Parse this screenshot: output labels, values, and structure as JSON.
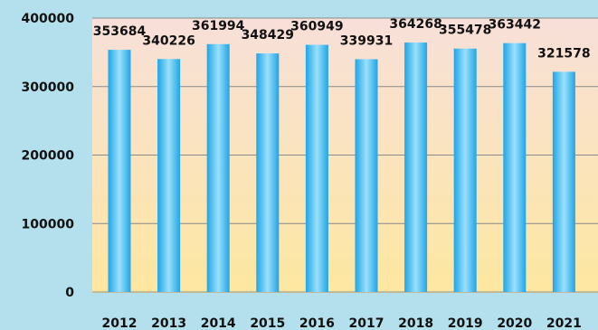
{
  "chart_data": {
    "type": "bar",
    "categories": [
      "2012",
      "2013",
      "2014",
      "2015",
      "2016",
      "2017",
      "2018",
      "2019",
      "2020",
      "2021"
    ],
    "values": [
      353684,
      340226,
      361994,
      348429,
      360949,
      339931,
      364268,
      355478,
      363442,
      321578
    ],
    "data_labels": [
      "353684",
      "340226",
      "361994",
      "348429",
      "360949",
      "339931",
      "364268",
      "355478",
      "363442",
      "321578"
    ],
    "yticks": [
      0,
      100000,
      200000,
      300000,
      400000
    ],
    "ytick_labels": [
      "0",
      "100000",
      "200000",
      "300000",
      "400000"
    ],
    "ylim": [
      0,
      400000
    ],
    "grid": true,
    "colors": {
      "background": "#b3e0ec",
      "plot_top": "#f8e0da",
      "plot_bottom": "#fde7a0",
      "bar_edge": "#1fa5e6",
      "bar_center": "#9be0fb",
      "grid": "#8a8a8a"
    }
  }
}
